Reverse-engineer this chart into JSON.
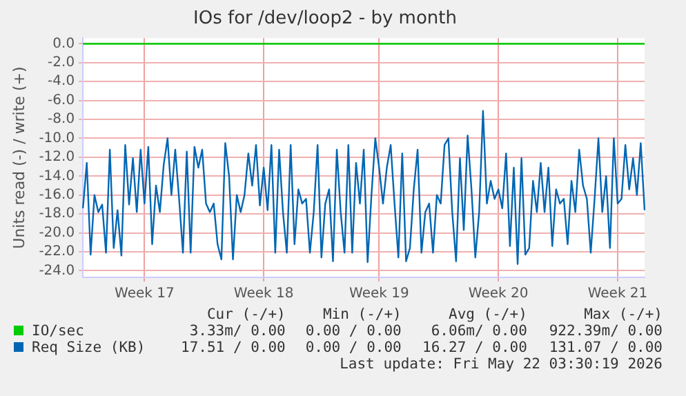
{
  "chart_data": {
    "type": "line",
    "title": "IOs for /dev/loop2 - by month",
    "ylabel": "Units read (-) / write (+)",
    "categories": [
      null,
      null,
      null,
      null,
      null,
      null,
      null,
      null,
      null,
      null,
      null,
      null,
      null,
      null,
      null,
      null,
      "Week 17",
      null,
      null,
      null,
      null,
      null,
      null,
      null,
      null,
      null,
      null,
      null,
      null,
      null,
      null,
      null,
      null,
      null,
      null,
      null,
      null,
      null,
      null,
      null,
      null,
      null,
      null,
      null,
      null,
      null,
      null,
      "Week 18",
      null,
      null,
      null,
      null,
      null,
      null,
      null,
      null,
      null,
      null,
      null,
      null,
      null,
      null,
      null,
      null,
      null,
      null,
      null,
      null,
      null,
      null,
      null,
      null,
      null,
      null,
      null,
      null,
      null,
      "Week 19",
      null,
      null,
      null,
      null,
      null,
      null,
      null,
      null,
      null,
      null,
      null,
      null,
      null,
      null,
      null,
      null,
      null,
      null,
      null,
      null,
      null,
      null,
      null,
      null,
      null,
      null,
      null,
      null,
      null,
      null,
      "Week 20",
      null,
      null,
      null,
      null,
      null,
      null,
      null,
      null,
      null,
      null,
      null,
      null,
      null,
      null,
      null,
      null,
      null,
      null,
      null,
      null,
      null,
      null,
      null,
      null,
      null,
      null,
      null,
      null,
      null,
      null,
      "Week 21",
      null,
      null,
      null,
      null,
      null,
      null,
      null
    ],
    "ylim": [
      -24.7,
      0.6
    ],
    "yticks": [
      {
        "value": 0,
        "label": "0.0"
      },
      {
        "value": -2,
        "label": "-2.0"
      },
      {
        "value": -4,
        "label": "-4.0"
      },
      {
        "value": -6,
        "label": "-6.0"
      },
      {
        "value": -8,
        "label": "-8.0"
      },
      {
        "value": -10,
        "label": "-10.0"
      },
      {
        "value": -12,
        "label": "-12.0"
      },
      {
        "value": -14,
        "label": "-14.0"
      },
      {
        "value": -16,
        "label": "-16.0"
      },
      {
        "value": -18,
        "label": "-18.0"
      },
      {
        "value": -20,
        "label": "-20.0"
      },
      {
        "value": -22,
        "label": "-22.0"
      },
      {
        "value": -24,
        "label": "-24.0"
      }
    ],
    "grid": true,
    "legend": "bottom",
    "marker": "none",
    "line_style": "solid",
    "series": [
      {
        "name": "IO/sec",
        "color": "#00cc00",
        "values": [
          0,
          0,
          0,
          0,
          0,
          0,
          0,
          0,
          0,
          0,
          0,
          0,
          0,
          0,
          0,
          0,
          0,
          0,
          0,
          0,
          0,
          0,
          0,
          0,
          0,
          0,
          0,
          0,
          0,
          0,
          0,
          0,
          0,
          0,
          0,
          0,
          0,
          0,
          0,
          0,
          0,
          0,
          0,
          0,
          0,
          0,
          0,
          0,
          0,
          0,
          0,
          0,
          0,
          0,
          0,
          0,
          0,
          0,
          0,
          0,
          0,
          0,
          0,
          0,
          0,
          0,
          0,
          0,
          0,
          0,
          0,
          0,
          0,
          0,
          0,
          0,
          0,
          0,
          0,
          0,
          0,
          0,
          0,
          0,
          0,
          0,
          0,
          0,
          0,
          0,
          0,
          0,
          0,
          0,
          0,
          0,
          0,
          0,
          0,
          0,
          0,
          0,
          0,
          0,
          0,
          0,
          0,
          0,
          0,
          0,
          0,
          0,
          0,
          0,
          0,
          0,
          0,
          0,
          0,
          0,
          0,
          0,
          0,
          0,
          0,
          0,
          0,
          0,
          0,
          0,
          0,
          0,
          0,
          0,
          0,
          0,
          0,
          0,
          0,
          0,
          0,
          0,
          0,
          0,
          0,
          0,
          0
        ]
      },
      {
        "name": "Req Size (KB)",
        "color": "#0066b3",
        "values": [
          -17.4,
          -12.6,
          -22.3,
          -16,
          -17.8,
          -17,
          -22.1,
          -11.2,
          -21.6,
          -17.6,
          -22.4,
          -10.7,
          -17,
          -12.1,
          -17.8,
          -11.2,
          -16.9,
          -10.9,
          -21.2,
          -15,
          -17.8,
          -12.8,
          -10,
          -16,
          -11.2,
          -16.4,
          -22.1,
          -11.4,
          -22.1,
          -10.9,
          -13.1,
          -11.2,
          -16.9,
          -17.8,
          -16.9,
          -21.2,
          -22.8,
          -10.5,
          -14,
          -22.8,
          -16,
          -17.8,
          -16,
          -11.6,
          -15,
          -10.7,
          -17.1,
          -13.1,
          -17.6,
          -10.7,
          -22.1,
          -11.2,
          -17.8,
          -22.1,
          -10.7,
          -21.2,
          -15.4,
          -16.9,
          -16.4,
          -22.1,
          -17.8,
          -10.7,
          -22.6,
          -16.9,
          -15.4,
          -23,
          -11.2,
          -17.8,
          -22.1,
          -10.7,
          -22.1,
          -12.6,
          -16.9,
          -11.2,
          -23.1,
          -16,
          -10,
          -13.1,
          -16.9,
          -13.1,
          -10.7,
          -16.9,
          -22.6,
          -11.6,
          -23,
          -21.6,
          -15.4,
          -11.2,
          -22.1,
          -17.8,
          -16.9,
          -22.1,
          -16,
          -16.9,
          -10.7,
          -10,
          -17.8,
          -23,
          -12.1,
          -19.7,
          -9.7,
          -15.4,
          -22.6,
          -17.8,
          -7.1,
          -16.9,
          -14.5,
          -16.4,
          -15.4,
          -17.4,
          -11.6,
          -21.4,
          -13.1,
          -23.3,
          -12.1,
          -22.3,
          -21.6,
          -14.5,
          -17.8,
          -12.6,
          -17.8,
          -13.1,
          -21.4,
          -15.4,
          -16.9,
          -16.4,
          -21.2,
          -14.5,
          -17.8,
          -11.2,
          -15,
          -16.4,
          -22.1,
          -16.4,
          -10,
          -17.8,
          -14,
          -21.6,
          -10,
          -16.9,
          -16.4,
          -10.7,
          -15.4,
          -12.1,
          -16,
          -10.5,
          -17.6
        ]
      }
    ],
    "annotations": [
      "Cur (-/+)",
      "Min (-/+)",
      "Avg (-/+)",
      "Max (-/+)",
      "3.33m/ 0.00",
      "0.00 / 0.00",
      "6.06m/ 0.00",
      "922.39m/ 0.00",
      "17.51 / 0.00",
      "0.00 / 0.00",
      "16.27 / 0.00",
      "131.07 / 0.00",
      "Last update: Fri May 22 03:30:19 2026"
    ]
  }
}
